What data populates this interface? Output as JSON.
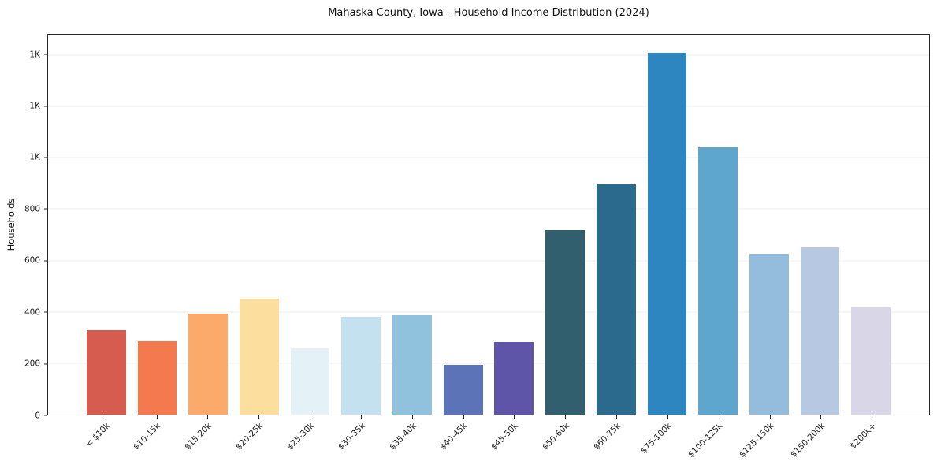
{
  "chart_data": {
    "type": "bar",
    "title": "Mahaska County, Iowa - Household Income Distribution (2024)",
    "xlabel": "",
    "ylabel": "Households",
    "categories": [
      "< $10k",
      "$10-15k",
      "$15-20k",
      "$20-25k",
      "$25-30k",
      "$30-35k",
      "$35-40k",
      "$40-45k",
      "$45-50k",
      "$50-60k",
      "$60-75k",
      "$75-100k",
      "$100-125k",
      "$125-150k",
      "$150-200k",
      "$200k+"
    ],
    "values": [
      330,
      287,
      392,
      450,
      258,
      382,
      386,
      192,
      283,
      720,
      897,
      1410,
      1041,
      627,
      651,
      418
    ],
    "bar_colors": [
      "#d65c4f",
      "#f4794f",
      "#fbaa6b",
      "#fcdf9e",
      "#e4f1f7",
      "#c3e1ee",
      "#90c2dd",
      "#5c74b7",
      "#5e55a8",
      "#325f6e",
      "#2b6a8c",
      "#2e86c0",
      "#5fa6cf",
      "#93bcdd",
      "#b6c8e2",
      "#d9d6e8"
    ],
    "ylim": [
      0,
      1480
    ],
    "yticks": {
      "values": [
        0,
        200,
        400,
        600,
        800,
        1000,
        1200,
        1400
      ],
      "labels": [
        "0",
        "200",
        "400",
        "600",
        "800",
        "1K",
        "1K",
        "1K"
      ]
    },
    "grid": "horizontal",
    "legend": "none",
    "background": "#ffffff"
  }
}
